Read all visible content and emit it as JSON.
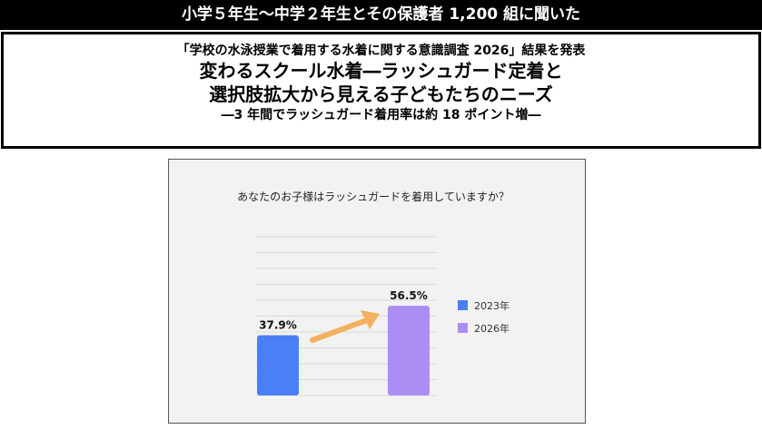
{
  "header": {
    "banner": "小学５年生〜中学２年生とその保護者 1,200 組に聞いた",
    "survey_title": "「学校の水泳授業で着用する水着に関する意識調査 2026」結果を発表",
    "headline_line1": "変わるスクール水着―ラッシュガード定着と",
    "headline_line2": "選択肢拡大から見える子どもたちのニーズ",
    "subheadline": "―3 年間でラッシュガード着用率は約 18 ポイント増―"
  },
  "chart_data": {
    "type": "bar",
    "title": "あなたのお子様はラッシュガードを着用していますか？",
    "categories": [
      "2023年",
      "2026年"
    ],
    "values": [
      37.9,
      56.5
    ],
    "value_labels": [
      "37.9%",
      "56.5%"
    ],
    "colors": [
      "#4a7ff5",
      "#ac8df2"
    ],
    "arrow_color": "#f2b15e",
    "legend": [
      {
        "label": "2023年",
        "color": "#4a7ff5"
      },
      {
        "label": "2026年",
        "color": "#ac8df2"
      }
    ],
    "legend_position": "right",
    "ylim": [
      0,
      100
    ],
    "grid": true
  }
}
